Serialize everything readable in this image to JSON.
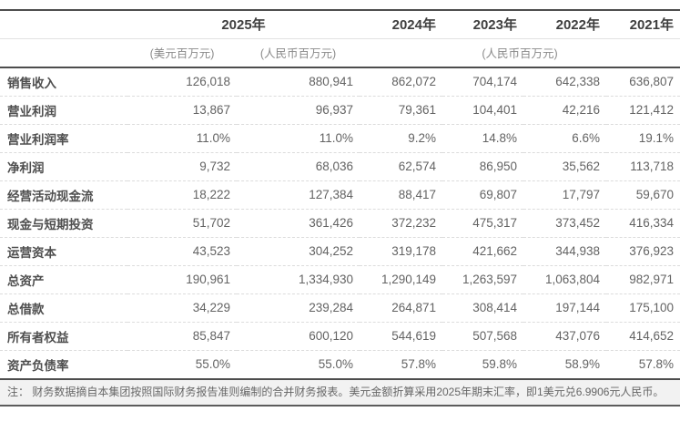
{
  "table": {
    "year_headers": {
      "y2025": "2025年",
      "y2024": "2024年",
      "y2023": "2023年",
      "y2022": "2022年",
      "y2021": "2021年"
    },
    "unit_headers": {
      "usd_2025": "(美元百万元)",
      "rmb_2025": "(人民币百万元)",
      "rmb_2021_2024": "(人民币百万元)"
    },
    "rows": [
      {
        "label": "销售收入",
        "values": [
          "126,018",
          "880,941",
          "862,072",
          "704,174",
          "642,338",
          "636,807"
        ]
      },
      {
        "label": "营业利润",
        "values": [
          "13,867",
          "96,937",
          "79,361",
          "104,401",
          "42,216",
          "121,412"
        ]
      },
      {
        "label": "营业利润率",
        "values": [
          "11.0%",
          "11.0%",
          "9.2%",
          "14.8%",
          "6.6%",
          "19.1%"
        ]
      },
      {
        "label": "净利润",
        "values": [
          "9,732",
          "68,036",
          "62,574",
          "86,950",
          "35,562",
          "113,718"
        ]
      },
      {
        "label": "经营活动现金流",
        "values": [
          "18,222",
          "127,384",
          "88,417",
          "69,807",
          "17,797",
          "59,670"
        ]
      },
      {
        "label": "现金与短期投资",
        "values": [
          "51,702",
          "361,426",
          "372,232",
          "475,317",
          "373,452",
          "416,334"
        ]
      },
      {
        "label": "运营资本",
        "values": [
          "43,523",
          "304,252",
          "319,178",
          "421,662",
          "344,938",
          "376,923"
        ]
      },
      {
        "label": "总资产",
        "values": [
          "190,961",
          "1,334,930",
          "1,290,149",
          "1,263,597",
          "1,063,804",
          "982,971"
        ]
      },
      {
        "label": "总借款",
        "values": [
          "34,229",
          "239,284",
          "264,871",
          "308,414",
          "197,144",
          "175,100"
        ]
      },
      {
        "label": "所有者权益",
        "values": [
          "85,847",
          "600,120",
          "544,619",
          "507,568",
          "437,076",
          "414,652"
        ]
      },
      {
        "label": "资产负债率",
        "values": [
          "55.0%",
          "55.0%",
          "57.8%",
          "59.8%",
          "58.9%",
          "57.8%"
        ]
      }
    ]
  },
  "note": "注： 财务数据摘自本集团按照国际财务报告准则编制的合并财务报表。美元金额折算采用2025年期末汇率，即1美元兑6.9906元人民币。"
}
